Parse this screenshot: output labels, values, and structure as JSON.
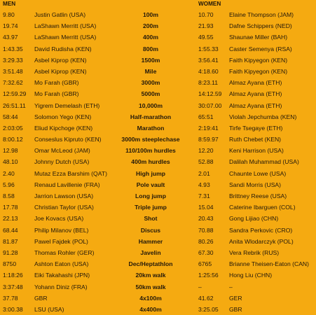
{
  "headers": {
    "men": "MEN",
    "women": "WOMEN"
  },
  "colors": {
    "background": "#F5AA11",
    "text": "#23180a"
  },
  "rows": [
    {
      "men_mark": "9.80",
      "men_name": "Justin Gatlin (USA)",
      "event": "100m",
      "women_mark": "10.70",
      "women_name": "Elaine Thompson (JAM)"
    },
    {
      "men_mark": "19.74",
      "men_name": "LaShawn Merritt (USA)",
      "event": "200m",
      "women_mark": "21.93",
      "women_name": "Dafne Schippers (NED)"
    },
    {
      "men_mark": "43.97",
      "men_name": "LaShawn Merritt (USA)",
      "event": "400m",
      "women_mark": "49.55",
      "women_name": "Shaunae Miller (BAH)"
    },
    {
      "men_mark": "1:43.35",
      "men_name": "David Rudisha (KEN)",
      "event": "800m",
      "women_mark": "1:55.33",
      "women_name": "Caster Semenya (RSA)"
    },
    {
      "men_mark": "3:29.33",
      "men_name": "Asbel Kiprop (KEN)",
      "event": "1500m",
      "women_mark": "3:56.41",
      "women_name": "Faith Kipyegon (KEN)"
    },
    {
      "men_mark": "3:51.48",
      "men_name": "Asbel Kiprop (KEN)",
      "event": "Mile",
      "women_mark": "4:18.60",
      "women_name": "Faith Kipyegon (KEN)"
    },
    {
      "men_mark": "7:32.62",
      "men_name": "Mo Farah (GBR)",
      "event": "3000m",
      "women_mark": "8:23.11",
      "women_name": "Almaz Ayana (ETH)"
    },
    {
      "men_mark": "12:59.29",
      "men_name": "Mo Farah (GBR)",
      "event": "5000m",
      "women_mark": "14:12.59",
      "women_name": "Almaz Ayana (ETH)"
    },
    {
      "men_mark": "26:51.11",
      "men_name": "Yigrem Demelash (ETH)",
      "event": "10,000m",
      "women_mark": "30:07.00",
      "women_name": "Almaz Ayana (ETH)"
    },
    {
      "men_mark": "58:44",
      "men_name": "Solomon Yego (KEN)",
      "event": "Half-marathon",
      "women_mark": "65:51",
      "women_name": "Violah Jepchumba (KEN)"
    },
    {
      "men_mark": "2:03:05",
      "men_name": "Eliud Kipchoge (KEN)",
      "event": "Marathon",
      "women_mark": "2:19:41",
      "women_name": "Tirfe Tsegaye (ETH)"
    },
    {
      "men_mark": "8:00.12",
      "men_name": "Conseslus Kipruto (KEN)",
      "event": "3000m steeplechase",
      "women_mark": "8:59.97",
      "women_name": "Ruth Chebet (KEN)"
    },
    {
      "men_mark": "12.98",
      "men_name": "Omar McLeod (JAM)",
      "event": "110/100m hurdles",
      "women_mark": "12.20",
      "women_name": "Keni Harrison (USA)"
    },
    {
      "men_mark": "48.10",
      "men_name": "Johnny Dutch (USA)",
      "event": "400m hurdles",
      "women_mark": "52.88",
      "women_name": "Dalilah Muhammad (USA)"
    },
    {
      "men_mark": "2.40",
      "men_name": "Mutaz Ezza Barshim (QAT)",
      "event": "High jump",
      "women_mark": "2.01",
      "women_name": "Chaunte Lowe (USA)"
    },
    {
      "men_mark": "5.96",
      "men_name": "Renaud Lavillenie (FRA)",
      "event": "Pole vault",
      "women_mark": "4.93",
      "women_name": "Sandi Morris (USA)"
    },
    {
      "men_mark": "8.58",
      "men_name": "Jarrion Lawson (USA)",
      "event": "Long jump",
      "women_mark": "7.31",
      "women_name": "Brittney Reese (USA)"
    },
    {
      "men_mark": "17.78",
      "men_name": "Christian Taylor (USA)",
      "event": "Triple jump",
      "women_mark": "15.04",
      "women_name": "Caterine Ibarguen (COL)"
    },
    {
      "men_mark": "22.13",
      "men_name": "Joe Kovacs (USA)",
      "event": "Shot",
      "women_mark": "20.43",
      "women_name": "Gong Lijiao (CHN)"
    },
    {
      "men_mark": "68.44",
      "men_name": "Philip Milanov (BEL)",
      "event": "Discus",
      "women_mark": "70.88",
      "women_name": "Sandra Perkovic (CRO)"
    },
    {
      "men_mark": "81.87",
      "men_name": "Pawel Fajdek (POL)",
      "event": "Hammer",
      "women_mark": "80.26",
      "women_name": "Anita Wlodarczyk (POL)"
    },
    {
      "men_mark": "91.28",
      "men_name": "Thomas Rohler (GER)",
      "event": "Javelin",
      "women_mark": "67.30",
      "women_name": "Vera Rebrik (RUS)"
    },
    {
      "men_mark": "8750",
      "men_name": "Ashton Eaton (USA)",
      "event": "Dec/Heptathlon",
      "women_mark": "6765",
      "women_name": "Brianne Theisen-Eaton (CAN)"
    },
    {
      "men_mark": "1:18:26",
      "men_name": "Eiki Takahashi (JPN)",
      "event": "20km walk",
      "women_mark": "1:25:56",
      "women_name": "Hong Liu (CHN)"
    },
    {
      "men_mark": "3:37:48",
      "men_name": "Yohann Diniz (FRA)",
      "event": "50km walk",
      "women_mark": "–",
      "women_name": "–"
    },
    {
      "men_mark": "37.78",
      "men_name": "GBR",
      "event": "4x100m",
      "women_mark": "41.62",
      "women_name": "GER"
    },
    {
      "men_mark": "3:00.38",
      "men_name": "LSU (USA)",
      "event": "4x400m",
      "women_mark": "3:25.05",
      "women_name": "GBR"
    }
  ]
}
